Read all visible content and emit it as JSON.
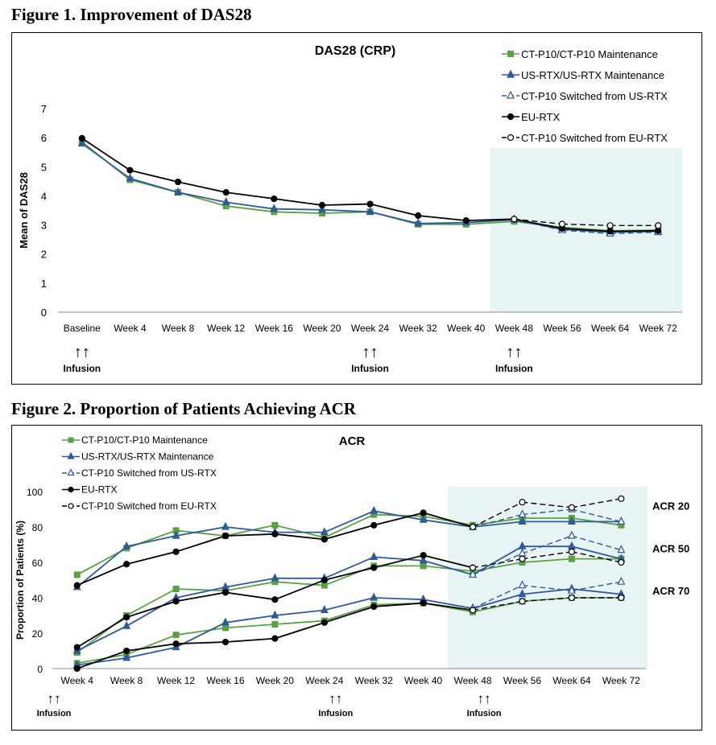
{
  "figure1": {
    "heading": "Figure 1. Improvement of DAS28",
    "infusion_label": "Infusion",
    "infusion_marker": "↑↑",
    "chart_data": {
      "type": "line",
      "title": "DAS28 (CRP)",
      "xlabel": "",
      "ylabel": "Mean of DAS28",
      "categories": [
        "Baseline",
        "Week 4",
        "Week 8",
        "Week 12",
        "Week 16",
        "Week 20",
        "Week 24",
        "Week 32",
        "Week 40",
        "Week 48",
        "Week 56",
        "Week 64",
        "Week 72"
      ],
      "ylim": [
        0,
        7
      ],
      "yticks": [
        0,
        1,
        2,
        3,
        4,
        5,
        6,
        7
      ],
      "grid": false,
      "legend_position": "top-right",
      "shaded_region": {
        "from": "Week 48",
        "to": "Week 72",
        "color": "#e8f3f3"
      },
      "infusion_at": [
        "Baseline",
        "Week 24",
        "Week 48"
      ],
      "series": [
        {
          "name": "CT-P10/CT-P10 Maintenance",
          "color": "#5aa146",
          "marker": "square",
          "dashed": false,
          "values": [
            5.85,
            4.55,
            4.12,
            3.65,
            3.45,
            3.4,
            3.45,
            3.02,
            3.02,
            3.12,
            2.92,
            2.8,
            2.82
          ]
        },
        {
          "name": "US-RTX/US-RTX Maintenance",
          "color": "#2e5a9a",
          "marker": "triangle",
          "dashed": false,
          "values": [
            5.8,
            4.6,
            4.12,
            3.78,
            3.55,
            3.52,
            3.45,
            3.05,
            3.08,
            3.18,
            2.85,
            2.75,
            2.78
          ]
        },
        {
          "name": "CT-P10 Switched from US-RTX",
          "color": "#2e5a9a",
          "marker": "triangle-open",
          "dashed": true,
          "values": [
            null,
            null,
            null,
            null,
            null,
            null,
            null,
            null,
            null,
            3.18,
            2.82,
            2.7,
            2.75
          ]
        },
        {
          "name": "EU-RTX",
          "color": "#000000",
          "marker": "circle",
          "dashed": false,
          "values": [
            5.98,
            4.88,
            4.48,
            4.12,
            3.9,
            3.68,
            3.72,
            3.32,
            3.15,
            3.2,
            2.88,
            2.78,
            2.8
          ]
        },
        {
          "name": "CT-P10 Switched from EU-RTX",
          "color": "#000000",
          "marker": "circle-open",
          "dashed": true,
          "values": [
            null,
            null,
            null,
            null,
            null,
            null,
            null,
            null,
            null,
            3.2,
            3.03,
            2.98,
            2.98
          ]
        }
      ]
    }
  },
  "figure2": {
    "heading": "Figure 2. Proportion of Patients Achieving ACR",
    "infusion_label": "Infusion",
    "infusion_marker": "↑↑",
    "chart_data": {
      "type": "line",
      "title": "ACR",
      "xlabel": "",
      "ylabel": "Proportion of Patients (%)",
      "categories": [
        "Week 4",
        "Week 8",
        "Week 12",
        "Week 16",
        "Week 20",
        "Week 24",
        "Week 32",
        "Week 40",
        "Week 48",
        "Week 56",
        "Week 64",
        "Week 72"
      ],
      "ylim": [
        0,
        100
      ],
      "yticks": [
        0,
        20,
        40,
        60,
        80,
        100
      ],
      "grid": false,
      "legend_position": "top-left",
      "shaded_region": {
        "from": "Week 48",
        "to": "Week 72",
        "color": "#e8f3f3"
      },
      "infusion_at": [
        "Week 4 (before)",
        "Week 24",
        "Week 48"
      ],
      "group_labels": [
        {
          "text": "ACR 20",
          "y": 92
        },
        {
          "text": "ACR 50",
          "y": 68
        },
        {
          "text": "ACR 70",
          "y": 44
        }
      ],
      "legend": [
        {
          "name": "CT-P10/CT-P10 Maintenance",
          "color": "#5aa146",
          "marker": "square",
          "dashed": false
        },
        {
          "name": "US-RTX/US-RTX Maintenance",
          "color": "#2e5a9a",
          "marker": "triangle",
          "dashed": false
        },
        {
          "name": "CT-P10 Switched from US-RTX",
          "color": "#2e5a9a",
          "marker": "triangle-open",
          "dashed": true
        },
        {
          "name": "EU-RTX",
          "color": "#000000",
          "marker": "circle",
          "dashed": false
        },
        {
          "name": "CT-P10 Switched from EU-RTX",
          "color": "#000000",
          "marker": "circle-open",
          "dashed": true
        }
      ],
      "series": [
        {
          "group": "ACR 20",
          "name": "CT-P10/CT-P10 Maintenance",
          "color": "#5aa146",
          "marker": "square",
          "dashed": false,
          "values": [
            53,
            68,
            78,
            75,
            81,
            74,
            87,
            86,
            81,
            85,
            85,
            81
          ]
        },
        {
          "group": "ACR 20",
          "name": "US-RTX/US-RTX Maintenance",
          "color": "#2e5a9a",
          "marker": "triangle",
          "dashed": false,
          "values": [
            46,
            69,
            75,
            80,
            77,
            77,
            89,
            84,
            80,
            83,
            83,
            83
          ]
        },
        {
          "group": "ACR 20",
          "name": "CT-P10 Switched from US-RTX",
          "color": "#2e5a9a",
          "marker": "triangle-open",
          "dashed": true,
          "values": [
            null,
            null,
            null,
            null,
            null,
            null,
            null,
            null,
            80,
            87,
            90,
            83
          ]
        },
        {
          "group": "ACR 20",
          "name": "EU-RTX",
          "color": "#000000",
          "marker": "circle",
          "dashed": false,
          "values": [
            47,
            59,
            66,
            75,
            76,
            73,
            81,
            88,
            80,
            null,
            null,
            null
          ]
        },
        {
          "group": "ACR 20",
          "name": "CT-P10 Switched from EU-RTX",
          "color": "#000000",
          "marker": "circle-open",
          "dashed": true,
          "values": [
            null,
            null,
            null,
            null,
            null,
            null,
            null,
            null,
            80,
            94,
            91,
            96
          ]
        },
        {
          "group": "ACR 50",
          "name": "CT-P10/CT-P10 Maintenance",
          "color": "#5aa146",
          "marker": "square",
          "dashed": false,
          "values": [
            9,
            30,
            45,
            44,
            49,
            47,
            58,
            58,
            55,
            60,
            62,
            62
          ]
        },
        {
          "group": "ACR 50",
          "name": "US-RTX/US-RTX Maintenance",
          "color": "#2e5a9a",
          "marker": "triangle",
          "dashed": false,
          "values": [
            10,
            24,
            40,
            46,
            51,
            51,
            63,
            61,
            53,
            69,
            69,
            62
          ]
        },
        {
          "group": "ACR 50",
          "name": "CT-P10 Switched from US-RTX",
          "color": "#2e5a9a",
          "marker": "triangle-open",
          "dashed": true,
          "values": [
            null,
            null,
            null,
            null,
            null,
            null,
            null,
            null,
            53,
            65,
            75,
            67
          ]
        },
        {
          "group": "ACR 50",
          "name": "EU-RTX",
          "color": "#000000",
          "marker": "circle",
          "dashed": false,
          "values": [
            12,
            29,
            38,
            43,
            39,
            50,
            57,
            64,
            57,
            null,
            null,
            null
          ]
        },
        {
          "group": "ACR 50",
          "name": "CT-P10 Switched from EU-RTX",
          "color": "#000000",
          "marker": "circle-open",
          "dashed": true,
          "values": [
            null,
            null,
            null,
            null,
            null,
            null,
            null,
            null,
            57,
            62,
            66,
            60
          ]
        },
        {
          "group": "ACR 70",
          "name": "CT-P10/CT-P10 Maintenance",
          "color": "#5aa146",
          "marker": "square",
          "dashed": false,
          "values": [
            3,
            8,
            19,
            23,
            25,
            27,
            36,
            37,
            32,
            38,
            40,
            40
          ]
        },
        {
          "group": "ACR 70",
          "name": "US-RTX/US-RTX Maintenance",
          "color": "#2e5a9a",
          "marker": "triangle",
          "dashed": false,
          "values": [
            2,
            6,
            12,
            26,
            30,
            33,
            40,
            39,
            34,
            42,
            45,
            42
          ]
        },
        {
          "group": "ACR 70",
          "name": "CT-P10 Switched from US-RTX",
          "color": "#2e5a9a",
          "marker": "triangle-open",
          "dashed": true,
          "values": [
            null,
            null,
            null,
            null,
            null,
            null,
            null,
            null,
            34,
            47,
            44,
            49
          ]
        },
        {
          "group": "ACR 70",
          "name": "EU-RTX",
          "color": "#000000",
          "marker": "circle",
          "dashed": false,
          "values": [
            0,
            10,
            14,
            15,
            17,
            26,
            35,
            37,
            33,
            null,
            null,
            null
          ]
        },
        {
          "group": "ACR 70",
          "name": "CT-P10 Switched from EU-RTX",
          "color": "#000000",
          "marker": "circle-open",
          "dashed": true,
          "values": [
            null,
            null,
            null,
            null,
            null,
            null,
            null,
            null,
            33,
            38,
            40,
            40
          ]
        }
      ]
    }
  }
}
